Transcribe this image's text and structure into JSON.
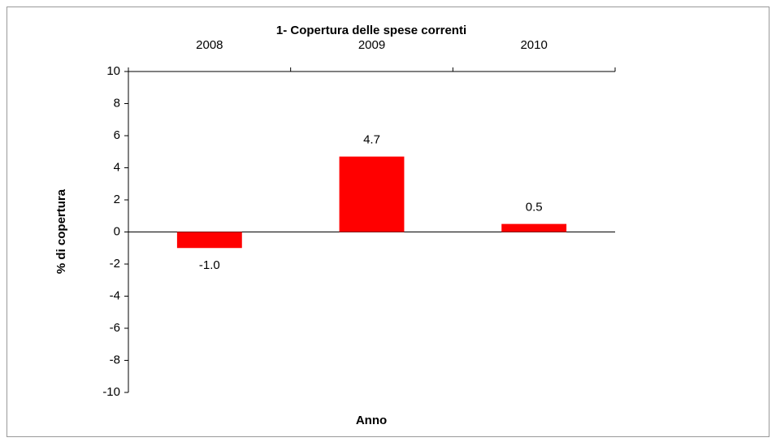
{
  "chart_data": {
    "type": "bar",
    "title": "1- Copertura delle spese correnti",
    "x_label": "Anno",
    "y_label": "% di copertura",
    "categories": [
      "2008",
      "2009",
      "2010"
    ],
    "values": [
      -1.0,
      4.7,
      0.5
    ],
    "value_labels": [
      "-1.0",
      "4.7",
      "0.5"
    ],
    "color": "#ff0000",
    "ylim": [
      -10,
      10
    ],
    "yticks": [
      -10,
      -8,
      -6,
      -4,
      -2,
      0,
      2,
      4,
      6,
      8,
      10
    ],
    "grid": false
  }
}
